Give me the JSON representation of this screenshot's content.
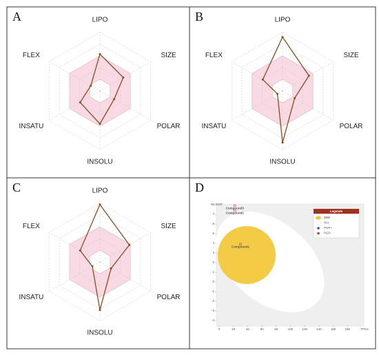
{
  "chart_data": [
    {
      "type": "radar",
      "panel": "A",
      "categories": [
        "LIPO",
        "SIZE",
        "POLAR",
        "INSOLU",
        "INSATU",
        "FLEX"
      ],
      "values": [
        0.63,
        0.46,
        0.28,
        0.56,
        0.39,
        0.18
      ],
      "rlim": [
        0,
        1
      ],
      "rticks": [
        0.2,
        0.4,
        0.6,
        0.8,
        1.0
      ],
      "optimal_range": [
        0.2,
        0.6
      ],
      "color": "#8b4a1f",
      "grid": true
    },
    {
      "type": "radar",
      "panel": "B",
      "categories": [
        "LIPO",
        "SIZE",
        "POLAR",
        "INSOLU",
        "INSATU",
        "FLEX"
      ],
      "values": [
        0.92,
        0.52,
        0.24,
        0.88,
        0.1,
        0.39
      ],
      "rlim": [
        0,
        1
      ],
      "rticks": [
        0.2,
        0.4,
        0.6,
        0.8,
        1.0
      ],
      "optimal_range": [
        0.2,
        0.6
      ],
      "color": "#8b4a1f",
      "grid": true
    },
    {
      "type": "radar",
      "panel": "C",
      "categories": [
        "LIPO",
        "SIZE",
        "POLAR",
        "INSOLU",
        "INSATU",
        "FLEX"
      ],
      "values": [
        0.98,
        0.58,
        0.22,
        0.82,
        0.15,
        0.39
      ],
      "rlim": [
        0,
        1
      ],
      "rticks": [
        0.2,
        0.4,
        0.6,
        0.8,
        1.0
      ],
      "optimal_range": [
        0.2,
        0.6
      ],
      "color": "#8b4a1f",
      "grid": true
    },
    {
      "type": "scatter",
      "panel": "D",
      "x_label": "TPSA",
      "y_label": "WLOGP",
      "x": [
        22,
        22,
        30
      ],
      "y": [
        7.9,
        7.4,
        3.9
      ],
      "point_labels": [
        "Compound3",
        "Compound2",
        "Compound1"
      ],
      "color": "#c0392b",
      "xlim": [
        0,
        200
      ],
      "xticks": [
        0,
        20,
        40,
        60,
        80,
        100,
        120,
        140,
        160,
        180
      ],
      "ylim": [
        -4.5,
        8
      ],
      "yticks": [
        -4,
        -3,
        -2,
        -1,
        0,
        1,
        2,
        3,
        4,
        5,
        6,
        7
      ],
      "legend_title": "Legends",
      "legend": [
        {
          "label": "BBB",
          "color": "#f3c530"
        },
        {
          "label": "HIA",
          "color": "#ffffff"
        },
        {
          "label": "PGP+",
          "color": "#3050c0"
        },
        {
          "label": "PGP-",
          "color": "#c0392b"
        }
      ]
    }
  ]
}
